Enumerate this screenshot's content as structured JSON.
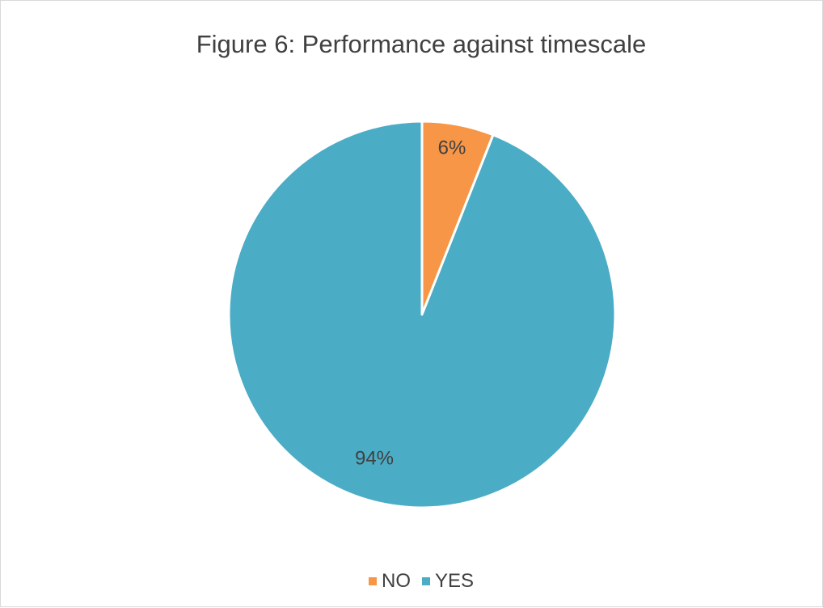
{
  "chart_data": {
    "type": "pie",
    "title": "Figure 6: Performance against timescale",
    "categories": [
      "NO",
      "YES"
    ],
    "values": [
      6,
      94
    ],
    "data_labels": [
      "6%",
      "94%"
    ],
    "colors": [
      "#f79646",
      "#4bacc6"
    ],
    "legend_position": "bottom"
  }
}
